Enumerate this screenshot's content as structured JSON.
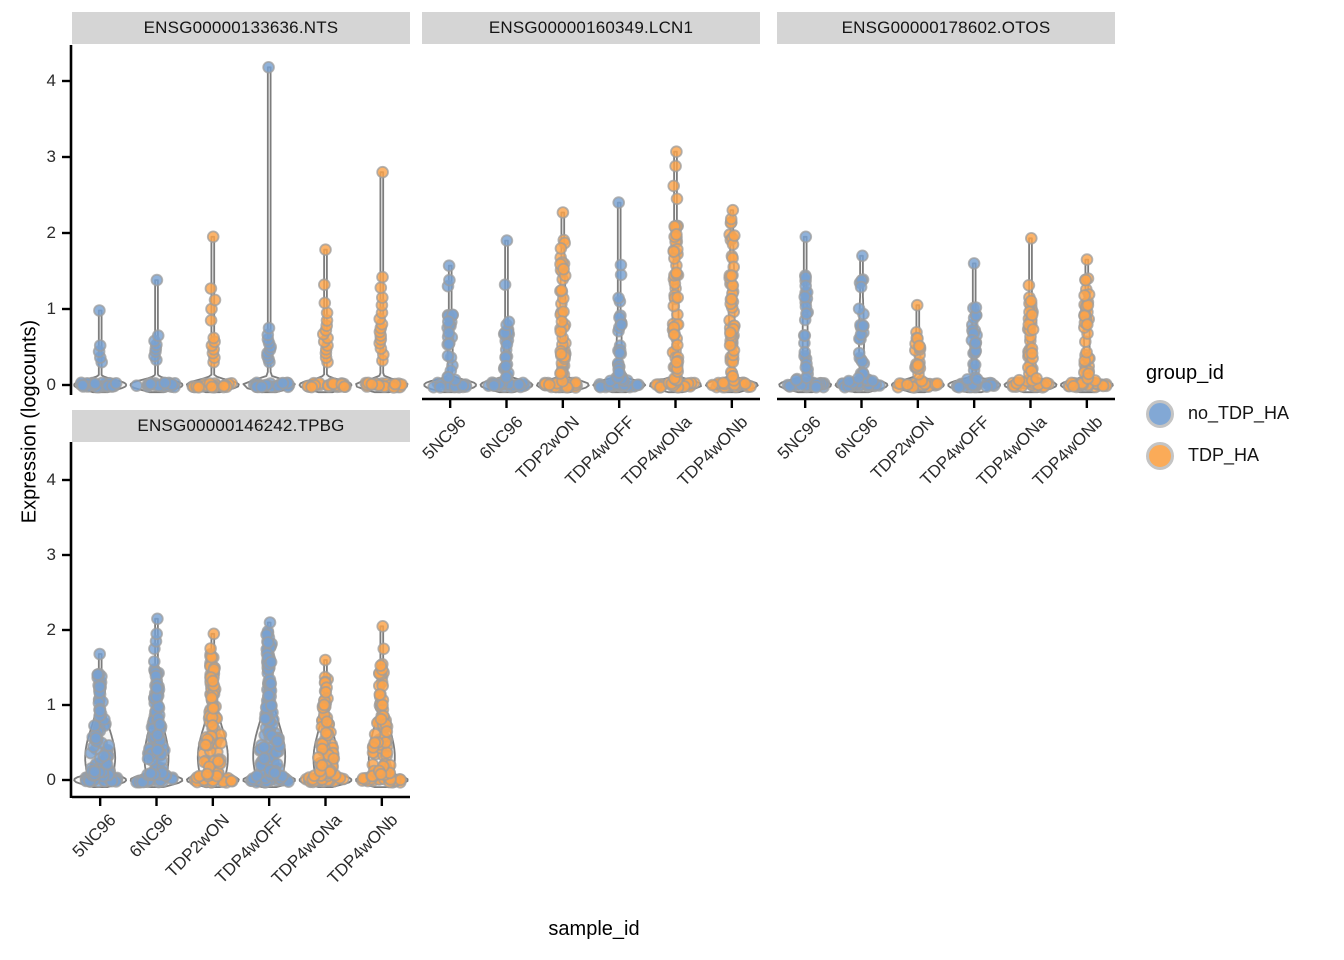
{
  "chart_data": {
    "type": "violin",
    "title": "",
    "xlabel": "sample_id",
    "ylabel": "Expression (logcounts)",
    "ylim": [
      0,
      4
    ],
    "yticks": [
      0,
      1,
      2,
      3,
      4
    ],
    "grid": false,
    "categories": [
      "5NC96",
      "6NC96",
      "TDP2wON",
      "TDP4wOFF",
      "TDP4wONa",
      "TDP4wONb"
    ],
    "legend": {
      "title": "group_id",
      "position": "right",
      "entries": [
        {
          "label": "no_TDP_HA",
          "color": "#78a1d2"
        },
        {
          "label": "TDP_HA",
          "color": "#fba44a"
        }
      ]
    },
    "colors": {
      "no_TDP_HA": "#78a1d2",
      "TDP_HA": "#fba44a",
      "point_stroke": "#9e9e9e",
      "violin_stroke": "#7d7d7d",
      "violin_fill": "#f1f1f1",
      "strip_bg": "#d5d5d5",
      "axis": "#000000"
    },
    "facets": [
      {
        "title": "ENSG00000133636.NTS",
        "violins": [
          {
            "sample": "5NC96",
            "group": "no_TDP_HA",
            "max": 0.98,
            "pts": [
              0.3,
              0.36,
              0.44,
              0.52
            ],
            "n_zero": 26,
            "n_body": 0,
            "body_top": 0,
            "w0": 26,
            "wb": 0,
            "mb": 0,
            "sb": 1
          },
          {
            "sample": "6NC96",
            "group": "no_TDP_HA",
            "max": 1.38,
            "pts": [
              0.33,
              0.38,
              0.44,
              0.48,
              0.53,
              0.58,
              0.65
            ],
            "n_zero": 26,
            "n_body": 0,
            "body_top": 0,
            "w0": 26,
            "wb": 0,
            "mb": 0,
            "sb": 1
          },
          {
            "sample": "TDP2wON",
            "group": "TDP_HA",
            "max": 1.95,
            "pts": [
              0.3,
              0.36,
              0.42,
              0.47,
              0.52,
              0.57,
              0.62,
              0.85,
              1.0,
              1.12,
              1.27
            ],
            "n_zero": 26,
            "n_body": 0,
            "body_top": 0,
            "w0": 26,
            "wb": 0,
            "mb": 0,
            "sb": 1
          },
          {
            "sample": "TDP4wOFF",
            "group": "no_TDP_HA",
            "max": 4.18,
            "pts": [
              0.3,
              0.34,
              0.38,
              0.42,
              0.46,
              0.5,
              0.55,
              0.6,
              0.66,
              0.75
            ],
            "n_zero": 26,
            "n_body": 0,
            "body_top": 0,
            "w0": 26,
            "wb": 0,
            "mb": 0,
            "sb": 1
          },
          {
            "sample": "TDP4wONa",
            "group": "TDP_HA",
            "max": 1.78,
            "pts": [
              0.3,
              0.36,
              0.42,
              0.47,
              0.52,
              0.57,
              0.62,
              0.67,
              0.72,
              0.78,
              0.85,
              0.95,
              1.08,
              1.32
            ],
            "n_zero": 26,
            "n_body": 0,
            "body_top": 0,
            "w0": 26,
            "wb": 0,
            "mb": 0,
            "sb": 1
          },
          {
            "sample": "TDP4wONb",
            "group": "TDP_HA",
            "max": 2.8,
            "pts": [
              0.32,
              0.4,
              0.48,
              0.55,
              0.6,
              0.65,
              0.7,
              0.75,
              0.8,
              0.87,
              0.95,
              1.05,
              1.15,
              1.28,
              1.42
            ],
            "n_zero": 26,
            "n_body": 0,
            "body_top": 0,
            "w0": 26,
            "wb": 0,
            "mb": 0,
            "sb": 1
          }
        ]
      },
      {
        "title": "ENSG00000160349.LCN1",
        "violins": [
          {
            "sample": "5NC96",
            "group": "no_TDP_HA",
            "max": 1.57,
            "pts": [
              1.3,
              1.38
            ],
            "n_zero": 26,
            "n_body": 22,
            "body_top": 0.95,
            "w0": 26,
            "wb": 2.5,
            "mb": 0.45,
            "sb": 0.55
          },
          {
            "sample": "6NC96",
            "group": "no_TDP_HA",
            "max": 1.9,
            "pts": [
              1.32
            ],
            "n_zero": 26,
            "n_body": 22,
            "body_top": 0.85,
            "w0": 26,
            "wb": 2.5,
            "mb": 0.4,
            "sb": 0.5
          },
          {
            "sample": "TDP2wON",
            "group": "TDP_HA",
            "max": 2.27,
            "pts": [],
            "n_zero": 26,
            "n_body": 48,
            "body_top": 1.95,
            "w0": 26,
            "wb": 2.8,
            "mb": 0.85,
            "sb": 1.05
          },
          {
            "sample": "TDP4wOFF",
            "group": "no_TDP_HA",
            "max": 2.4,
            "pts": [
              1.45,
              1.58
            ],
            "n_zero": 26,
            "n_body": 30,
            "body_top": 1.15,
            "w0": 26,
            "wb": 2.5,
            "mb": 0.5,
            "sb": 0.65
          },
          {
            "sample": "TDP4wONa",
            "group": "TDP_HA",
            "max": 3.07,
            "pts": [
              2.45,
              2.62,
              2.88
            ],
            "n_zero": 26,
            "n_body": 55,
            "body_top": 2.1,
            "w0": 26,
            "wb": 3.0,
            "mb": 0.9,
            "sb": 1.1
          },
          {
            "sample": "TDP4wONb",
            "group": "TDP_HA",
            "max": 2.3,
            "pts": [],
            "n_zero": 26,
            "n_body": 52,
            "body_top": 2.2,
            "w0": 26,
            "wb": 2.8,
            "mb": 0.95,
            "sb": 1.15
          }
        ]
      },
      {
        "title": "ENSG00000178602.OTOS",
        "violins": [
          {
            "sample": "5NC96",
            "group": "no_TDP_HA",
            "max": 1.95,
            "pts": [],
            "n_zero": 26,
            "n_body": 26,
            "body_top": 1.5,
            "w0": 26,
            "wb": 2.5,
            "mb": 0.65,
            "sb": 0.8
          },
          {
            "sample": "6NC96",
            "group": "no_TDP_HA",
            "max": 1.7,
            "pts": [],
            "n_zero": 26,
            "n_body": 30,
            "body_top": 1.4,
            "w0": 26,
            "wb": 2.5,
            "mb": 0.6,
            "sb": 0.75
          },
          {
            "sample": "TDP2wON",
            "group": "TDP_HA",
            "max": 1.05,
            "pts": [],
            "n_zero": 26,
            "n_body": 20,
            "body_top": 0.9,
            "w0": 26,
            "wb": 2.5,
            "mb": 0.4,
            "sb": 0.5
          },
          {
            "sample": "TDP4wOFF",
            "group": "no_TDP_HA",
            "max": 1.6,
            "pts": [],
            "n_zero": 26,
            "n_body": 24,
            "body_top": 1.15,
            "w0": 26,
            "wb": 2.5,
            "mb": 0.5,
            "sb": 0.62
          },
          {
            "sample": "TDP4wONa",
            "group": "TDP_HA",
            "max": 1.93,
            "pts": [],
            "n_zero": 26,
            "n_body": 40,
            "body_top": 1.35,
            "w0": 26,
            "wb": 2.8,
            "mb": 0.58,
            "sb": 0.72
          },
          {
            "sample": "TDP4wONb",
            "group": "TDP_HA",
            "max": 1.65,
            "pts": [],
            "n_zero": 26,
            "n_body": 40,
            "body_top": 1.45,
            "w0": 26,
            "wb": 2.8,
            "mb": 0.62,
            "sb": 0.78
          }
        ]
      },
      {
        "title": "ENSG00000146242.TPBG",
        "violins": [
          {
            "sample": "5NC96",
            "group": "no_TDP_HA",
            "max": 1.68,
            "pts": [],
            "n_zero": 26,
            "n_body": 85,
            "body_top": 1.45,
            "w0": 26,
            "wb": 15,
            "mb": 0.3,
            "sb": 0.55
          },
          {
            "sample": "6NC96",
            "group": "no_TDP_HA",
            "max": 2.15,
            "pts": [
              1.75,
              1.85,
              1.95
            ],
            "n_zero": 26,
            "n_body": 85,
            "body_top": 1.6,
            "w0": 26,
            "wb": 12,
            "mb": 0.3,
            "sb": 0.55
          },
          {
            "sample": "TDP2wON",
            "group": "TDP_HA",
            "max": 1.95,
            "pts": [],
            "n_zero": 26,
            "n_body": 95,
            "body_top": 1.8,
            "w0": 26,
            "wb": 15,
            "mb": 0.3,
            "sb": 0.58
          },
          {
            "sample": "TDP4wOFF",
            "group": "no_TDP_HA",
            "max": 2.1,
            "pts": [],
            "n_zero": 26,
            "n_body": 115,
            "body_top": 2.0,
            "w0": 26,
            "wb": 16,
            "mb": 0.32,
            "sb": 0.62
          },
          {
            "sample": "TDP4wONa",
            "group": "TDP_HA",
            "max": 1.6,
            "pts": [],
            "n_zero": 26,
            "n_body": 70,
            "body_top": 1.38,
            "w0": 26,
            "wb": 12,
            "mb": 0.28,
            "sb": 0.52
          },
          {
            "sample": "TDP4wONb",
            "group": "TDP_HA",
            "max": 2.05,
            "pts": [
              1.75
            ],
            "n_zero": 26,
            "n_body": 80,
            "body_top": 1.55,
            "w0": 26,
            "wb": 13,
            "mb": 0.3,
            "sb": 0.55
          }
        ]
      }
    ]
  }
}
